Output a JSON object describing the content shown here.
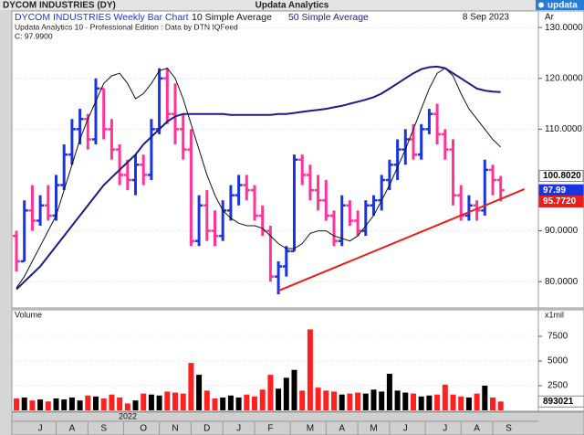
{
  "window_title": "Updata Analytics",
  "brand": "updata",
  "chart_data": {
    "type": "ohlc",
    "symbol": "DYCOM INDUSTRIES (DY)",
    "title": "DYCOM INDUSTRIES Weekly Bar Chart",
    "subtitle": "Updata Analytics 10 - Professional Edition : Data by DTN IQFeed",
    "close_label": "C: 97.9900",
    "date": "8 Sep 2023",
    "axis_tag": "Ar",
    "year_label": "2022",
    "categories": [
      null,
      null,
      null,
      "J",
      null,
      null,
      null,
      "A",
      null,
      null,
      null,
      "S",
      null,
      null,
      null,
      null,
      "O",
      null,
      null,
      null,
      "N",
      null,
      null,
      null,
      "D",
      null,
      null,
      null,
      "J",
      null,
      null,
      null,
      "F",
      null,
      null,
      null,
      null,
      "M",
      null,
      null,
      null,
      "A",
      null,
      null,
      null,
      "M",
      null,
      null,
      null,
      "J",
      null,
      null,
      null,
      null,
      "J",
      null,
      null,
      null,
      "A",
      null,
      null,
      null,
      "S",
      null,
      null,
      null
    ],
    "ohlc": {
      "up_color": "#1a35e0",
      "down_color": "#ff3399",
      "open": [
        89,
        84,
        94,
        92,
        95,
        93,
        99,
        105,
        110,
        112,
        108,
        118,
        110,
        106,
        101,
        100,
        103,
        101,
        110,
        120,
        113,
        110,
        106,
        88,
        95,
        90,
        89,
        94,
        97,
        99,
        98,
        93,
        90,
        81,
        83,
        86,
        104,
        101,
        98,
        96,
        93,
        88,
        95,
        92,
        90,
        95,
        96,
        100,
        103,
        106,
        108,
        105,
        110,
        113,
        109,
        106,
        97,
        93,
        95,
        94,
        102,
        100,
        null,
        null,
        null,
        null
      ],
      "high": [
        90,
        96,
        99,
        97,
        99,
        101,
        107,
        112,
        114,
        113,
        120,
        118,
        112,
        107,
        104,
        105,
        105,
        112,
        122,
        122,
        119,
        113,
        110,
        97,
        98,
        94,
        96,
        99,
        101,
        101,
        99,
        95,
        91,
        84,
        87,
        105,
        105,
        103,
        101,
        100,
        94,
        97,
        96,
        94,
        96,
        97,
        101,
        104,
        108,
        110,
        111,
        111,
        114,
        115,
        110,
        108,
        99,
        97,
        96,
        104,
        103,
        100.8,
        null,
        null,
        null,
        null
      ],
      "low": [
        82,
        84,
        90,
        91,
        92,
        92,
        98,
        103,
        107,
        106,
        107,
        108,
        104,
        99,
        98,
        97,
        99,
        100,
        109,
        111,
        107,
        104,
        87,
        87,
        88,
        87,
        88,
        92,
        95,
        96,
        92,
        89,
        80,
        77.5,
        81,
        86,
        99,
        96,
        94,
        92,
        87,
        87,
        91,
        89,
        89,
        93,
        94,
        98,
        100,
        103,
        104,
        104,
        109,
        107,
        104,
        95,
        92,
        92,
        92,
        93,
        97,
        95.8,
        null,
        null,
        null,
        null
      ],
      "close": [
        84,
        94,
        92,
        95,
        93,
        99,
        105,
        110,
        112,
        108,
        118,
        110,
        106,
        101,
        100,
        103,
        101,
        110,
        120,
        113,
        110,
        106,
        88,
        95,
        90,
        89,
        94,
        97,
        99,
        98,
        93,
        90,
        81,
        83,
        86,
        104,
        101,
        98,
        96,
        93,
        88,
        95,
        92,
        90,
        95,
        96,
        100,
        103,
        106,
        108,
        105,
        110,
        113,
        109,
        106,
        97,
        93,
        95,
        94,
        102,
        100,
        97.99,
        null,
        null,
        null,
        null
      ]
    },
    "series": [
      {
        "name": "10 Simple Average",
        "color": "#111111",
        "values": [
          78.8,
          81,
          84,
          87,
          90,
          93,
          98,
          103,
          108,
          112,
          115.5,
          119,
          120.5,
          121,
          119,
          116,
          117,
          119,
          121.5,
          122,
          120,
          116,
          111,
          106,
          101,
          97,
          94,
          92.5,
          91.5,
          91,
          91,
          90.5,
          89,
          87.5,
          86.5,
          86.5,
          87.5,
          89.5,
          90,
          90,
          89,
          88.5,
          88,
          89,
          91,
          93,
          96,
          99,
          102.5,
          106,
          110,
          114,
          118,
          121,
          122,
          120.5,
          117,
          114,
          112,
          110,
          108,
          106.5,
          null,
          null,
          null,
          null
        ]
      },
      {
        "name": "50 Simple Average",
        "color": "#1c1c86",
        "values": [
          78.5,
          80,
          81.5,
          83,
          85,
          87,
          89,
          91,
          93,
          95,
          97,
          99,
          100.5,
          102,
          103.5,
          105,
          107,
          108.5,
          110,
          111.5,
          112.5,
          113,
          113,
          113,
          113,
          113,
          113,
          112.8,
          112.8,
          112.8,
          112.8,
          112.8,
          112.8,
          113,
          113,
          113.2,
          113.4,
          113.6,
          113.8,
          114,
          114.3,
          114.6,
          115,
          115.4,
          115.8,
          116.3,
          117,
          118,
          119,
          120,
          121,
          121.8,
          122.2,
          122.3,
          122,
          121,
          120,
          119,
          118,
          117.6,
          117.4,
          117.3,
          null,
          null,
          null,
          null
        ]
      }
    ],
    "trendline": {
      "color": "#e8201c",
      "x": [
        33,
        64
      ],
      "values": [
        78.2,
        98.2
      ]
    },
    "ylim": [
      75,
      132
    ],
    "yticks": [
      {
        "value": 80,
        "label": "80.0000"
      },
      {
        "value": 90,
        "label": "90.0000"
      },
      {
        "value": 110,
        "label": "110.0000"
      },
      {
        "value": 120,
        "label": "120.0000"
      },
      {
        "value": 130,
        "label": "130.0000"
      }
    ],
    "price_markers": [
      {
        "value": 100.802,
        "label": "100.8020",
        "color": "#ffffff",
        "text_color": "#000000"
      },
      {
        "value": 97.99,
        "label": "97.99",
        "color": "#1a35e0",
        "text_color": "#ffffff"
      },
      {
        "value": 95.772,
        "label": "95.7720",
        "color": "#e8201c",
        "text_color": "#ffffff"
      }
    ],
    "volume": {
      "title": "Volume",
      "unit_label": "x1mil",
      "up_color": "#000000",
      "down_color": "#ff2020",
      "values": [
        1200,
        1300,
        1000,
        1100,
        900,
        1200,
        1100,
        1300,
        1000,
        1500,
        1400,
        1200,
        1600,
        1300,
        700,
        1000,
        1700,
        1600,
        1500,
        1900,
        1800,
        1700,
        4800,
        3600,
        2000,
        1200,
        1300,
        1500,
        1300,
        1600,
        1400,
        2100,
        3600,
        2200,
        3300,
        4100,
        2000,
        8200,
        2300,
        2000,
        1900,
        1600,
        1700,
        1800,
        1700,
        2100,
        1900,
        3700,
        2000,
        1800,
        1700,
        1400,
        1500,
        1600,
        2600,
        1600,
        1400,
        1300,
        1700,
        2500,
        1300,
        893.021,
        null,
        null,
        null,
        null
      ],
      "ylim": [
        0,
        10000
      ],
      "yticks": [
        2500,
        5000,
        7500
      ],
      "marker": {
        "value": 893.021,
        "label": "893021"
      }
    }
  }
}
